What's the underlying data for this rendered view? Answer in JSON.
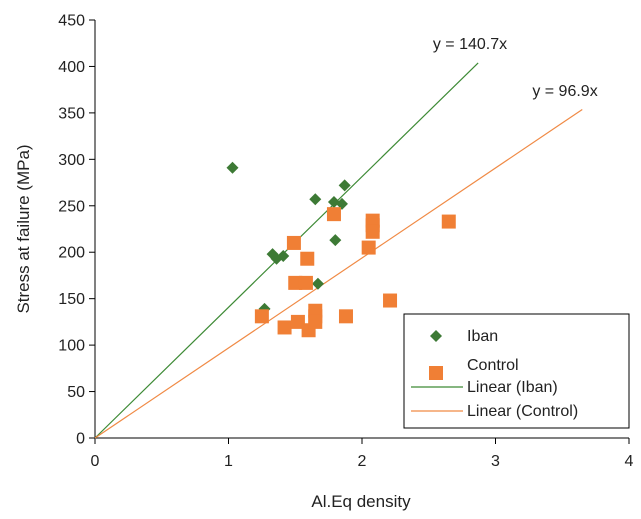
{
  "chart_data": {
    "type": "scatter",
    "xlabel": "Al.Eq density",
    "ylabel": "Stress at failure (MPa)",
    "xlim": [
      0,
      4
    ],
    "ylim": [
      0,
      450
    ],
    "xticks": [
      0,
      1,
      2,
      3,
      4
    ],
    "yticks": [
      0,
      50,
      100,
      150,
      200,
      250,
      300,
      350,
      400,
      450
    ],
    "grid": false,
    "legend_position": "bottom-right",
    "series": [
      {
        "name": "Iban",
        "marker": "diamond",
        "color": "#3d7a35",
        "points": [
          [
            1.03,
            291
          ],
          [
            1.27,
            139
          ],
          [
            1.33,
            198
          ],
          [
            1.36,
            193
          ],
          [
            1.41,
            196
          ],
          [
            1.65,
            257
          ],
          [
            1.67,
            166
          ],
          [
            1.79,
            254
          ],
          [
            1.8,
            213
          ],
          [
            1.85,
            252
          ],
          [
            1.87,
            272
          ]
        ]
      },
      {
        "name": "Control",
        "marker": "square",
        "color": "#f07f35",
        "points": [
          [
            1.25,
            131
          ],
          [
            1.42,
            119
          ],
          [
            1.49,
            210
          ],
          [
            1.5,
            167
          ],
          [
            1.52,
            125
          ],
          [
            1.58,
            167
          ],
          [
            1.59,
            193
          ],
          [
            1.6,
            116
          ],
          [
            1.65,
            131
          ],
          [
            1.65,
            137
          ],
          [
            1.65,
            125
          ],
          [
            1.79,
            241
          ],
          [
            1.88,
            131
          ],
          [
            2.05,
            205
          ],
          [
            2.08,
            234
          ],
          [
            2.08,
            229
          ],
          [
            2.08,
            222
          ],
          [
            2.21,
            148
          ],
          [
            2.65,
            233
          ]
        ]
      }
    ],
    "trendlines": [
      {
        "name": "Linear (Iban)",
        "slope": 140.7,
        "color": "#3d8a35",
        "x_end": 2.87,
        "equation": "y = 140.7x"
      },
      {
        "name": "Linear (Control)",
        "slope": 96.9,
        "color": "#f08a45",
        "x_end": 3.65,
        "equation": "y = 96.9x"
      }
    ],
    "legend": [
      "Iban",
      "Control",
      "Linear (Iban)",
      "Linear (Control)"
    ]
  }
}
